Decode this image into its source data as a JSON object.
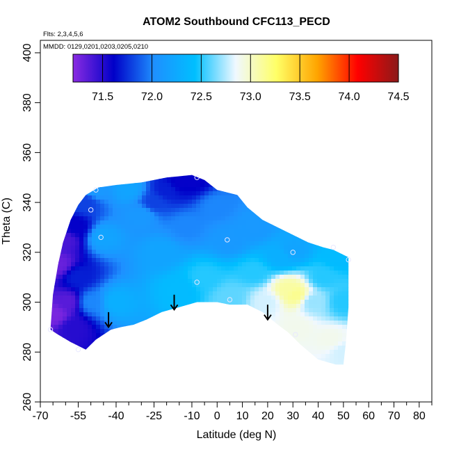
{
  "chart_data": {
    "type": "heatmap",
    "title": "ATOM2 Southbound CFC113_PECD",
    "flights_note": "Flts: 2,3,4,5,6",
    "dates_note": "MMDD: 0129,0201,0203,0205,0210",
    "xlabel": "Latitude (deg N)",
    "ylabel": "Theta (C)",
    "xlim": [
      -70,
      85
    ],
    "ylim": [
      260,
      405
    ],
    "x_ticks": [
      -70,
      -55,
      -40,
      -25,
      -10,
      0,
      10,
      20,
      30,
      40,
      50,
      60,
      70,
      80
    ],
    "x_minor_ticks": [
      -65,
      -60,
      -50,
      -45,
      -35,
      -30,
      -20,
      -15,
      -5,
      5,
      15,
      25,
      35,
      45,
      55,
      65,
      75,
      85
    ],
    "y_ticks": [
      260,
      280,
      300,
      320,
      340,
      360,
      380,
      400
    ],
    "colorbar": {
      "min": 71.2,
      "max": 74.5,
      "ticks": [
        71.5,
        72.0,
        72.5,
        73.0,
        73.5,
        74.0,
        74.5
      ],
      "colors": [
        "#8a2be2",
        "#0000c8",
        "#1e90ff",
        "#00bfff",
        "#f0f8ff",
        "#ffff66",
        "#ffa500",
        "#ff0000",
        "#8b1a1a"
      ]
    },
    "surface": {
      "boundary": [
        [
          -66,
          289
        ],
        [
          -65,
          303
        ],
        [
          -63,
          315
        ],
        [
          -61,
          324
        ],
        [
          -58,
          333
        ],
        [
          -55,
          339
        ],
        [
          -52,
          343
        ],
        [
          -47,
          346
        ],
        [
          -40,
          347
        ],
        [
          -30,
          348
        ],
        [
          -20,
          350
        ],
        [
          -10,
          351
        ],
        [
          -5,
          349
        ],
        [
          0,
          345
        ],
        [
          8,
          343
        ],
        [
          12,
          338
        ],
        [
          18,
          333
        ],
        [
          24,
          330
        ],
        [
          30,
          327
        ],
        [
          36,
          324
        ],
        [
          42,
          322
        ],
        [
          46,
          321
        ],
        [
          52,
          318
        ],
        [
          52,
          298
        ],
        [
          51,
          284
        ],
        [
          50,
          275
        ],
        [
          47,
          275
        ],
        [
          40,
          277
        ],
        [
          33,
          283
        ],
        [
          28,
          288
        ],
        [
          24,
          291
        ],
        [
          18,
          296
        ],
        [
          12,
          299
        ],
        [
          5,
          299
        ],
        [
          0,
          300
        ],
        [
          -8,
          300
        ],
        [
          -15,
          298
        ],
        [
          -22,
          296
        ],
        [
          -28,
          293
        ],
        [
          -33,
          291
        ],
        [
          -38,
          290
        ],
        [
          -42,
          289
        ],
        [
          -48,
          285
        ],
        [
          -52,
          281
        ],
        [
          -58,
          284
        ],
        [
          -63,
          287
        ]
      ],
      "anchors": [
        {
          "lat": -64,
          "theta": 295,
          "value": 71.25
        },
        {
          "lat": -63,
          "theta": 315,
          "value": 71.3
        },
        {
          "lat": -60,
          "theta": 325,
          "value": 71.4
        },
        {
          "lat": -59,
          "theta": 300,
          "value": 71.35
        },
        {
          "lat": -57,
          "theta": 290,
          "value": 71.5
        },
        {
          "lat": -56,
          "theta": 330,
          "value": 71.6
        },
        {
          "lat": -55,
          "theta": 310,
          "value": 71.7
        },
        {
          "lat": -52,
          "theta": 340,
          "value": 71.8
        },
        {
          "lat": -50,
          "theta": 300,
          "value": 72.0
        },
        {
          "lat": -48,
          "theta": 345,
          "value": 72.1
        },
        {
          "lat": -45,
          "theta": 326,
          "value": 72.2
        },
        {
          "lat": -40,
          "theta": 300,
          "value": 72.3
        },
        {
          "lat": -35,
          "theta": 345,
          "value": 72.2
        },
        {
          "lat": -30,
          "theta": 335,
          "value": 72.1
        },
        {
          "lat": -25,
          "theta": 340,
          "value": 71.8
        },
        {
          "lat": -20,
          "theta": 345,
          "value": 71.7
        },
        {
          "lat": -15,
          "theta": 348,
          "value": 71.6
        },
        {
          "lat": -10,
          "theta": 349,
          "value": 71.6
        },
        {
          "lat": -22,
          "theta": 320,
          "value": 72.2
        },
        {
          "lat": -12,
          "theta": 330,
          "value": 72.0
        },
        {
          "lat": 0,
          "theta": 338,
          "value": 72.0
        },
        {
          "lat": -15,
          "theta": 305,
          "value": 72.4
        },
        {
          "lat": -5,
          "theta": 310,
          "value": 72.5
        },
        {
          "lat": 5,
          "theta": 325,
          "value": 72.1
        },
        {
          "lat": 5,
          "theta": 302,
          "value": 72.6
        },
        {
          "lat": 15,
          "theta": 330,
          "value": 72.1
        },
        {
          "lat": 15,
          "theta": 312,
          "value": 72.5
        },
        {
          "lat": 20,
          "theta": 300,
          "value": 72.8
        },
        {
          "lat": 25,
          "theta": 318,
          "value": 72.3
        },
        {
          "lat": 30,
          "theta": 321,
          "value": 72.2
        },
        {
          "lat": 28,
          "theta": 305,
          "value": 73.1
        },
        {
          "lat": 31,
          "theta": 303,
          "value": 73.15
        },
        {
          "lat": 32,
          "theta": 290,
          "value": 72.9
        },
        {
          "lat": 38,
          "theta": 300,
          "value": 72.7
        },
        {
          "lat": 42,
          "theta": 310,
          "value": 72.5
        },
        {
          "lat": 48,
          "theta": 318,
          "value": 72.4
        },
        {
          "lat": 45,
          "theta": 285,
          "value": 72.9
        },
        {
          "lat": 50,
          "theta": 300,
          "value": 72.5
        },
        {
          "lat": 50,
          "theta": 280,
          "value": 72.8
        }
      ]
    },
    "sample_points": [
      {
        "lat": -48,
        "theta": 345
      },
      {
        "lat": -50,
        "theta": 337
      },
      {
        "lat": -46,
        "theta": 326
      },
      {
        "lat": -8,
        "theta": 350
      },
      {
        "lat": 4,
        "theta": 325
      },
      {
        "lat": 30,
        "theta": 320
      },
      {
        "lat": -8,
        "theta": 308
      },
      {
        "lat": 5,
        "theta": 301
      },
      {
        "lat": 31,
        "theta": 287
      },
      {
        "lat": -55,
        "theta": 281
      },
      {
        "lat": -66,
        "theta": 289
      },
      {
        "lat": 46,
        "theta": 322
      },
      {
        "lat": 52,
        "theta": 317
      }
    ],
    "arrows": [
      {
        "lat": -43,
        "theta_from": 296,
        "theta_to": 290
      },
      {
        "lat": -17,
        "theta_from": 303,
        "theta_to": 297
      },
      {
        "lat": 20,
        "theta_from": 299,
        "theta_to": 293
      }
    ]
  }
}
